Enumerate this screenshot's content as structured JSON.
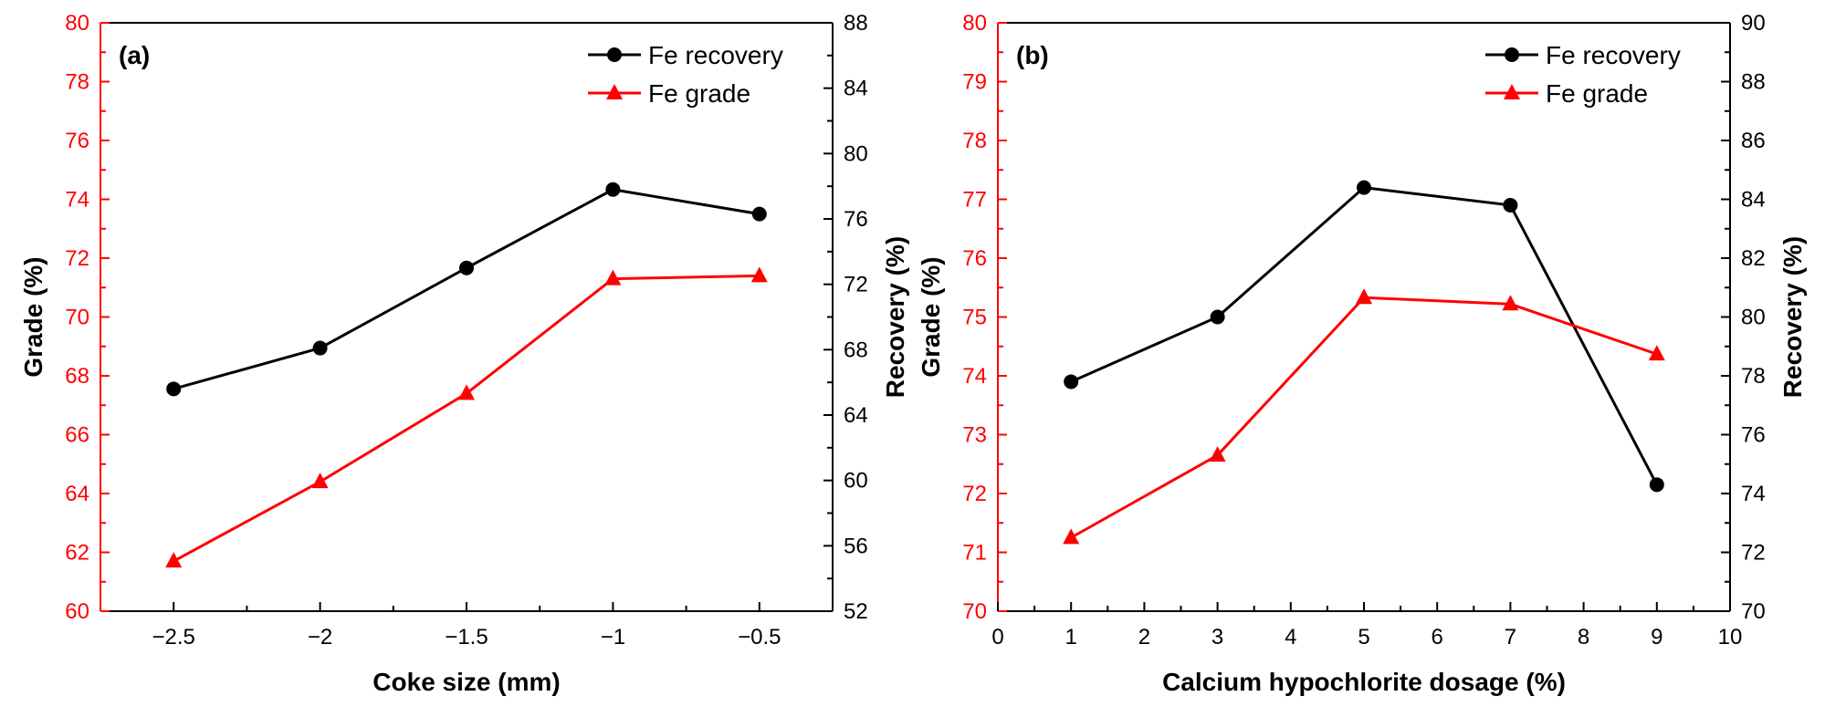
{
  "chart_data": [
    {
      "type": "line",
      "panel_label": "(a)",
      "x": [
        -2.5,
        -2,
        -1.5,
        -1,
        -0.5
      ],
      "x_tick_values": [
        -2.5,
        -2,
        -1.5,
        -1,
        -0.5
      ],
      "x_tick_labels": [
        "−2.5",
        "−2",
        "−1.5",
        "−1",
        "−0.5"
      ],
      "xlim": [
        -2.75,
        -0.25
      ],
      "xlabel": "Coke size (mm)",
      "ylabel_left": "Grade (%)",
      "ylim_left": [
        60,
        80
      ],
      "y_ticks_left": [
        60,
        62,
        64,
        66,
        68,
        70,
        72,
        74,
        76,
        78,
        80
      ],
      "ylabel_right": "Recovery (%)",
      "ylim_right": [
        52,
        88
      ],
      "y_ticks_right": [
        52,
        56,
        60,
        64,
        68,
        72,
        76,
        80,
        84,
        88
      ],
      "series": [
        {
          "name": "Fe recovery",
          "axis": "right",
          "color": "#000000",
          "marker": "circle",
          "values": [
            65.6,
            68.1,
            73.0,
            77.8,
            76.3
          ]
        },
        {
          "name": "Fe grade",
          "axis": "left",
          "color": "#ff0000",
          "marker": "triangle",
          "values": [
            61.7,
            64.4,
            67.4,
            71.3,
            71.4
          ]
        }
      ]
    },
    {
      "type": "line",
      "panel_label": "(b)",
      "x": [
        1,
        3,
        5,
        7,
        9
      ],
      "x_tick_values": [
        0,
        1,
        2,
        3,
        4,
        5,
        6,
        7,
        8,
        9,
        10
      ],
      "x_tick_labels": [
        "0",
        "1",
        "2",
        "3",
        "4",
        "5",
        "6",
        "7",
        "8",
        "9",
        "10"
      ],
      "xlim": [
        0,
        10
      ],
      "xlabel": "Calcium hypochlorite dosage  (%)",
      "ylabel_left": "Grade (%)",
      "ylim_left": [
        70,
        80
      ],
      "y_ticks_left": [
        70,
        71,
        72,
        73,
        74,
        75,
        76,
        77,
        78,
        79,
        80
      ],
      "ylabel_right": "Recovery (%)",
      "ylim_right": [
        70,
        90
      ],
      "y_ticks_right": [
        70,
        72,
        74,
        76,
        78,
        80,
        82,
        84,
        86,
        88,
        90
      ],
      "series": [
        {
          "name": "Fe recovery",
          "axis": "right",
          "color": "#000000",
          "marker": "circle",
          "values": [
            77.8,
            80.0,
            84.4,
            83.8,
            74.3
          ]
        },
        {
          "name": "Fe grade",
          "axis": "left",
          "color": "#ff0000",
          "marker": "triangle",
          "values": [
            71.25,
            72.65,
            75.33,
            75.22,
            74.37
          ]
        }
      ]
    }
  ]
}
